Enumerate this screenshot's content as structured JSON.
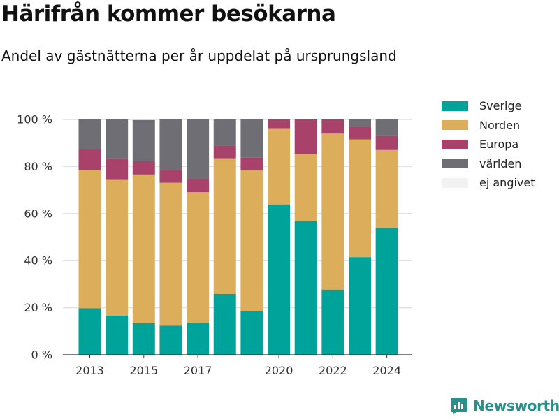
{
  "header": {
    "title": "Härifrån kommer besökarna",
    "subtitle": "Andel av gästnätterna per år uppdelat på ursprungsland"
  },
  "brand": {
    "name": "Newsworthy",
    "color": "#2a8f8a"
  },
  "chart_data": {
    "type": "bar",
    "stacked": true,
    "categories": [
      "2013",
      "2014",
      "2015",
      "2016",
      "2017",
      "2018",
      "2019",
      "2020",
      "2021",
      "2022",
      "2023",
      "2024"
    ],
    "x_tick_labels": [
      "2013",
      "2015",
      "2017",
      "2020",
      "2022",
      "2024"
    ],
    "y_tick_labels": [
      "0 %",
      "20 %",
      "40 %",
      "60 %",
      "80 %",
      "100 %"
    ],
    "ylim": [
      0,
      100
    ],
    "grid": true,
    "legend_position": "right",
    "series": [
      {
        "name": "Sverige",
        "color": "#00a39a",
        "values": [
          19.8,
          16.6,
          13.4,
          12.4,
          13.6,
          25.9,
          18.5,
          63.9,
          56.8,
          27.7,
          41.5,
          53.9
        ]
      },
      {
        "name": "Norden",
        "color": "#dcae5c",
        "values": [
          58.6,
          57.7,
          63.2,
          60.7,
          55.5,
          57.6,
          59.8,
          32.1,
          28.5,
          66.3,
          50.0,
          33.1
        ]
      },
      {
        "name": "Europa",
        "color": "#a8426a",
        "values": [
          9.0,
          9.2,
          5.6,
          5.4,
          5.6,
          5.4,
          5.6,
          4.0,
          14.7,
          6.0,
          5.5,
          6.0
        ]
      },
      {
        "name": "världen",
        "color": "#6e6e74",
        "values": [
          12.6,
          16.5,
          17.6,
          21.5,
          25.3,
          11.1,
          16.1,
          0.0,
          0.0,
          0.0,
          3.0,
          7.0
        ]
      },
      {
        "name": "ej angivet",
        "color": "#f2f2f2",
        "values": [
          0,
          0,
          0.2,
          0,
          0,
          0,
          0,
          0,
          0,
          0,
          0,
          0
        ]
      }
    ]
  }
}
